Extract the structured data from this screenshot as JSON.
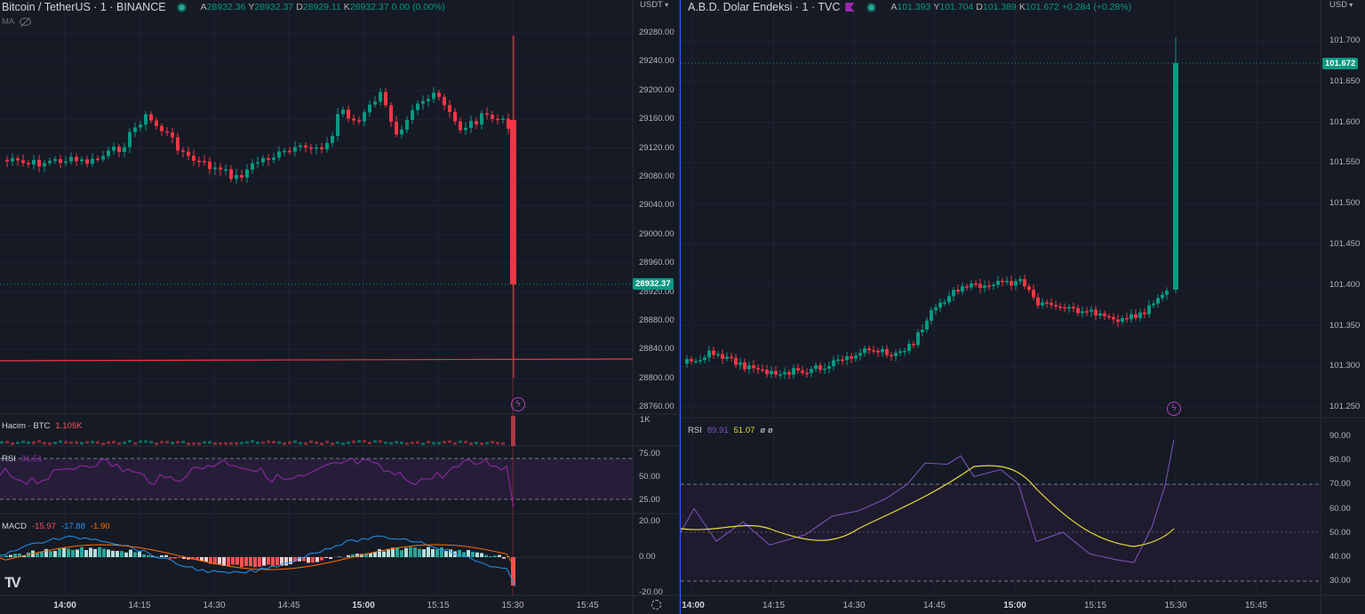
{
  "left": {
    "symbol": "Bitcoin / TetherUS · 1 · BINANCE",
    "ohlc": [
      {
        "k": "A",
        "v": "28932.36"
      },
      {
        "k": "Y",
        "v": "28932.37"
      },
      {
        "k": "D",
        "v": "28929.11"
      },
      {
        "k": "K",
        "v": "28932.37"
      },
      {
        "k": "",
        "v": "0.00 (0.00%)"
      }
    ],
    "ma_label": "MA",
    "currency": "USDT",
    "price_axis": [
      "29280.00",
      "29240.00",
      "29200.00",
      "29160.00",
      "29120.00",
      "29080.00",
      "29040.00",
      "29000.00",
      "28960.00",
      "28920.00",
      "28880.00",
      "28840.00",
      "28800.00",
      "28760.00"
    ],
    "last_price": "28932.37",
    "volume": {
      "name": "Hacim · BTC",
      "value": "1.105K",
      "axis": "1K"
    },
    "rsi": {
      "name": "RSI",
      "value": "31.51",
      "axis": [
        "75.00",
        "50.00",
        "25.00"
      ]
    },
    "macd": {
      "name": "MACD",
      "values": [
        "-15.97",
        "-17.88",
        "-1.90"
      ],
      "axis": [
        "20.00",
        "0.00",
        "-20.00"
      ]
    },
    "time_axis": [
      {
        "label": "14:00",
        "bold": true
      },
      {
        "label": "14:15",
        "bold": false
      },
      {
        "label": "14:30",
        "bold": false
      },
      {
        "label": "14:45",
        "bold": false
      },
      {
        "label": "15:00",
        "bold": true
      },
      {
        "label": "15:15",
        "bold": false
      },
      {
        "label": "15:30",
        "bold": false
      },
      {
        "label": "15:45",
        "bold": false
      }
    ]
  },
  "right": {
    "symbol": "A.B.D. Dolar Endeksi · 1 · TVC",
    "ohlc": [
      {
        "k": "A",
        "v": "101.393"
      },
      {
        "k": "Y",
        "v": "101.704"
      },
      {
        "k": "D",
        "v": "101.389"
      },
      {
        "k": "K",
        "v": "101.672"
      },
      {
        "k": "",
        "v": "+0.284 (+0.28%)"
      }
    ],
    "currency": "USD",
    "price_axis": [
      "101.700",
      "101.650",
      "101.600",
      "101.550",
      "101.500",
      "101.450",
      "101.400",
      "101.350",
      "101.300",
      "101.250"
    ],
    "last_price": "101.672",
    "rsi": {
      "name": "RSI",
      "value": "89.91",
      "ma": "51.07",
      "extra": "ø ø",
      "axis": [
        "90.00",
        "80.00",
        "70.00",
        "60.00",
        "50.00",
        "40.00",
        "30.00"
      ]
    },
    "time_axis": [
      {
        "label": "14:00",
        "bold": true
      },
      {
        "label": "14:15",
        "bold": false
      },
      {
        "label": "14:30",
        "bold": false
      },
      {
        "label": "14:45",
        "bold": false
      },
      {
        "label": "15:00",
        "bold": true
      },
      {
        "label": "15:15",
        "bold": false
      },
      {
        "label": "15:30",
        "bold": false
      },
      {
        "label": "15:45",
        "bold": false
      }
    ]
  },
  "colors": {
    "up": "#089981",
    "down": "#f23645",
    "rsi": "#7e57c2",
    "rsi_ma": "#e6dd3b",
    "macd": "#2196f3",
    "signal": "#ff6d00",
    "bg": "#161a25"
  },
  "logo_text": "TV"
}
